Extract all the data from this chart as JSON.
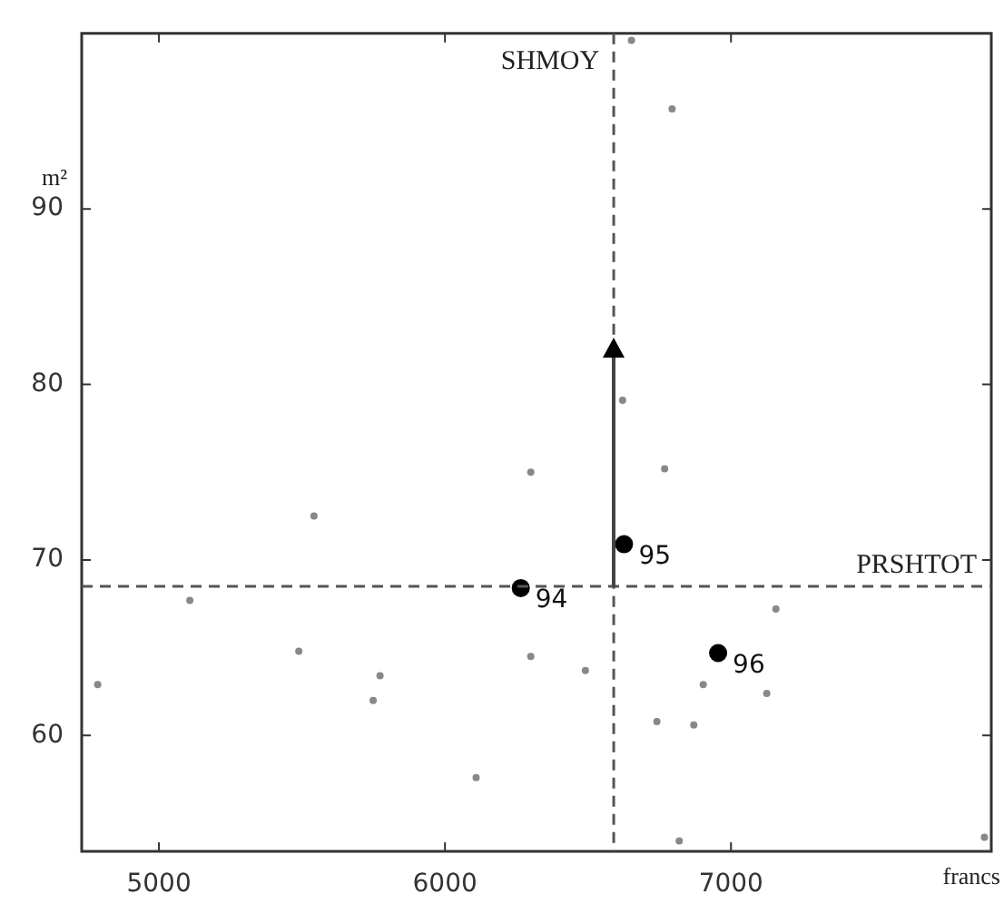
{
  "chart_data": {
    "type": "scatter",
    "xlabel": "francs",
    "ylabel": "m²",
    "xlim": [
      4730,
      7910
    ],
    "xticks": [
      5000,
      6000,
      7000
    ],
    "ylim": [
      53.4,
      100
    ],
    "yticks": [
      60,
      70,
      80,
      90
    ],
    "grid": false,
    "legend": false,
    "marker": "circle",
    "series": [
      {
        "color": "#888888",
        "x": [
          6652,
          6794,
          6621,
          4786,
          5108,
          5542,
          5489,
          5773,
          5749,
          6109,
          6300,
          6300,
          6491,
          6768,
          7157,
          6903,
          7125,
          6741,
          6870,
          6819,
          7886
        ],
        "values": [
          99.6,
          95.7,
          79.1,
          62.9,
          67.7,
          72.5,
          64.8,
          63.4,
          62.0,
          57.6,
          75.0,
          64.5,
          63.7,
          75.2,
          67.2,
          62.9,
          62.4,
          60.8,
          60.6,
          54.0,
          54.2
        ]
      },
      {
        "color": "#000000",
        "x": [
          6265,
          6626,
          6955
        ],
        "values": [
          68.4,
          70.9,
          64.7
        ]
      }
    ],
    "ref_lines": [
      {
        "axis": "x",
        "value": 6590,
        "label": "SHMOY",
        "line_style": "dashed",
        "color": "#555555"
      },
      {
        "axis": "y",
        "value": 68.5,
        "label": "PRSHTOT",
        "line_style": "dashed",
        "color": "#555555"
      }
    ],
    "annotations": [
      {
        "text": "94",
        "x": 6265,
        "y": 68.4
      },
      {
        "text": "95",
        "x": 6626,
        "y": 70.9
      },
      {
        "text": "96",
        "x": 6955,
        "y": 64.7
      }
    ]
  }
}
